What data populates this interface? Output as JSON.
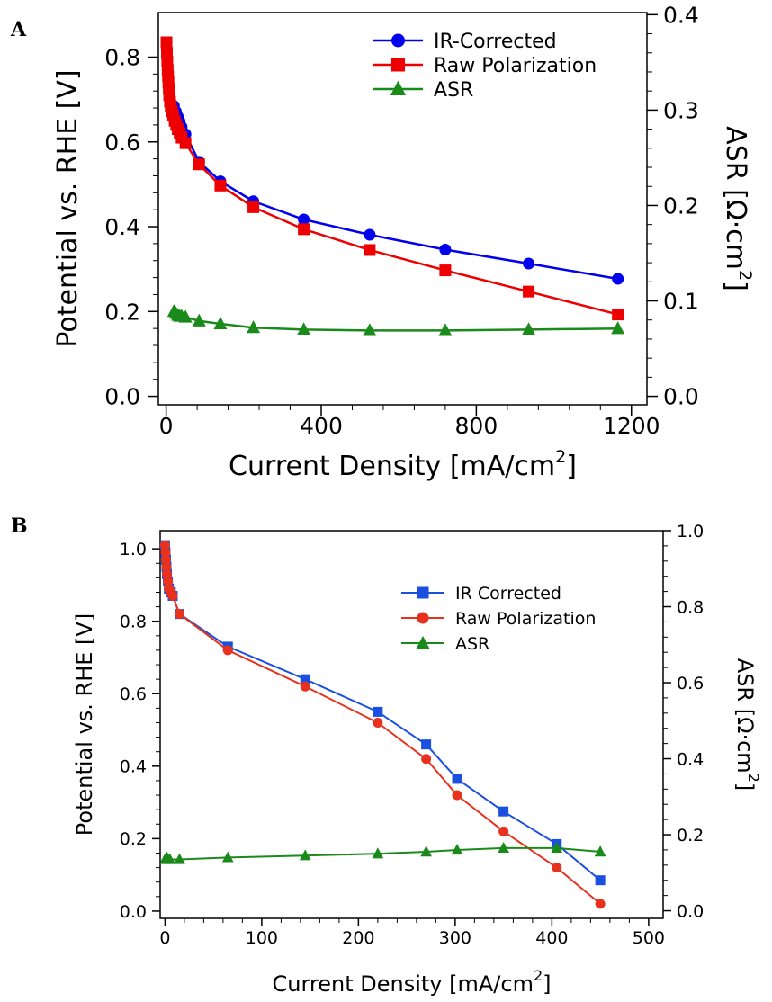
{
  "panels": [
    {
      "letter": "A"
    },
    {
      "letter": "B"
    }
  ],
  "chart_data": [
    {
      "type": "line",
      "xlabel": "Current Density [mA/cm",
      "xlabel_sup": "2",
      "xlabel_end": "]",
      "ylabel": "Potential vs. RHE [V]",
      "y2label": "ASR [Ω·cm",
      "y2label_sup": "2",
      "y2label_end": "]",
      "xlim": [
        -20,
        1240
      ],
      "ylim": [
        -0.02,
        0.905
      ],
      "y2lim": [
        -0.00889,
        0.4022
      ],
      "xticks": [
        0,
        400,
        800,
        1200
      ],
      "yticks": [
        0.0,
        0.2,
        0.4,
        0.6,
        0.8
      ],
      "yticklabels": [
        "0.0",
        "0.2",
        "0.4",
        "0.6",
        "0.8"
      ],
      "y2ticks": [
        0.0,
        0.1,
        0.2,
        0.3,
        0.4
      ],
      "y2ticklabels": [
        "0.0",
        "0.1",
        "0.2",
        "0.3",
        "0.4"
      ],
      "legend_position": "top-right",
      "grid": false,
      "series": [
        {
          "name": "IR-Corrected",
          "color": "#0000ee",
          "marker": "circle",
          "axis": "left",
          "x": [
            20,
            25,
            30,
            35,
            40,
            50,
            85,
            140,
            225,
            355,
            525,
            720,
            935,
            1165
          ],
          "y": [
            0.685,
            0.672,
            0.66,
            0.648,
            0.635,
            0.618,
            0.553,
            0.507,
            0.46,
            0.417,
            0.381,
            0.346,
            0.313,
            0.277
          ]
        },
        {
          "name": "Raw Polarization",
          "color": "#ee0000",
          "marker": "square",
          "axis": "left",
          "x": [
            1,
            2,
            3,
            4,
            5,
            6,
            7,
            8,
            10,
            12,
            15,
            18,
            22,
            26,
            30,
            35,
            40,
            50,
            85,
            140,
            225,
            355,
            525,
            720,
            935,
            1165
          ],
          "y": [
            0.835,
            0.81,
            0.79,
            0.77,
            0.755,
            0.74,
            0.725,
            0.71,
            0.695,
            0.685,
            0.672,
            0.662,
            0.65,
            0.64,
            0.63,
            0.62,
            0.61,
            0.597,
            0.547,
            0.497,
            0.446,
            0.394,
            0.345,
            0.297,
            0.247,
            0.193
          ]
        },
        {
          "name": "ASR",
          "color": "#1a8a1a",
          "marker": "triangle",
          "axis": "right",
          "x": [
            20,
            25,
            30,
            35,
            40,
            50,
            85,
            140,
            225,
            355,
            525,
            720,
            935,
            1165
          ],
          "y": [
            0.089,
            0.087,
            0.085,
            0.084,
            0.084,
            0.083,
            0.079,
            0.076,
            0.072,
            0.07,
            0.069,
            0.069,
            0.07,
            0.071
          ]
        }
      ]
    },
    {
      "type": "line",
      "xlabel": "Current Density [mA/cm",
      "xlabel_sup": "2",
      "xlabel_end": "]",
      "ylabel": "Potential vs. RHE [V]",
      "y2label": "ASR [Ω·cm",
      "y2label_sup": "2",
      "y2label_end": "]",
      "xlim": [
        -5,
        515
      ],
      "ylim": [
        -0.02,
        1.05
      ],
      "y2lim": [
        -0.02,
        1.0
      ],
      "xticks": [
        0,
        100,
        200,
        300,
        400,
        500
      ],
      "yticks": [
        0.0,
        0.2,
        0.4,
        0.6,
        0.8,
        1.0
      ],
      "yticklabels": [
        "0.0",
        "0.2",
        "0.4",
        "0.6",
        "0.8",
        "1.0"
      ],
      "y2ticks": [
        0.0,
        0.2,
        0.4,
        0.6,
        0.8,
        1.0
      ],
      "y2ticklabels": [
        "0.0",
        "0.2",
        "0.4",
        "0.6",
        "0.8",
        "1.0"
      ],
      "legend_position": "top-right",
      "grid": false,
      "series": [
        {
          "name": "IR Corrected",
          "color": "#1a4fe0",
          "marker": "square",
          "axis": "left",
          "x": [
            0,
            0.5,
            1,
            1.5,
            2,
            3,
            4,
            6,
            8,
            15,
            65,
            145,
            220,
            270,
            302,
            350,
            405,
            450
          ],
          "y": [
            1.01,
            0.99,
            0.97,
            0.95,
            0.93,
            0.91,
            0.89,
            0.88,
            0.87,
            0.82,
            0.73,
            0.64,
            0.55,
            0.46,
            0.365,
            0.275,
            0.185,
            0.085
          ]
        },
        {
          "name": "Raw Polarization",
          "color": "#e8321e",
          "marker": "circle",
          "axis": "left",
          "x": [
            0,
            0.5,
            1,
            1.5,
            2,
            3,
            4,
            6,
            8,
            15,
            65,
            145,
            220,
            270,
            302,
            350,
            405,
            450
          ],
          "y": [
            1.01,
            0.99,
            0.97,
            0.95,
            0.93,
            0.91,
            0.89,
            0.88,
            0.87,
            0.82,
            0.72,
            0.62,
            0.52,
            0.42,
            0.32,
            0.22,
            0.12,
            0.02
          ]
        },
        {
          "name": "ASR",
          "color": "#1a8a1a",
          "marker": "triangle",
          "axis": "right",
          "x": [
            0,
            2,
            5,
            15,
            65,
            145,
            220,
            270,
            302,
            350,
            405,
            450
          ],
          "y": [
            0.135,
            0.14,
            0.135,
            0.135,
            0.14,
            0.145,
            0.15,
            0.155,
            0.16,
            0.165,
            0.165,
            0.155
          ]
        }
      ]
    }
  ]
}
